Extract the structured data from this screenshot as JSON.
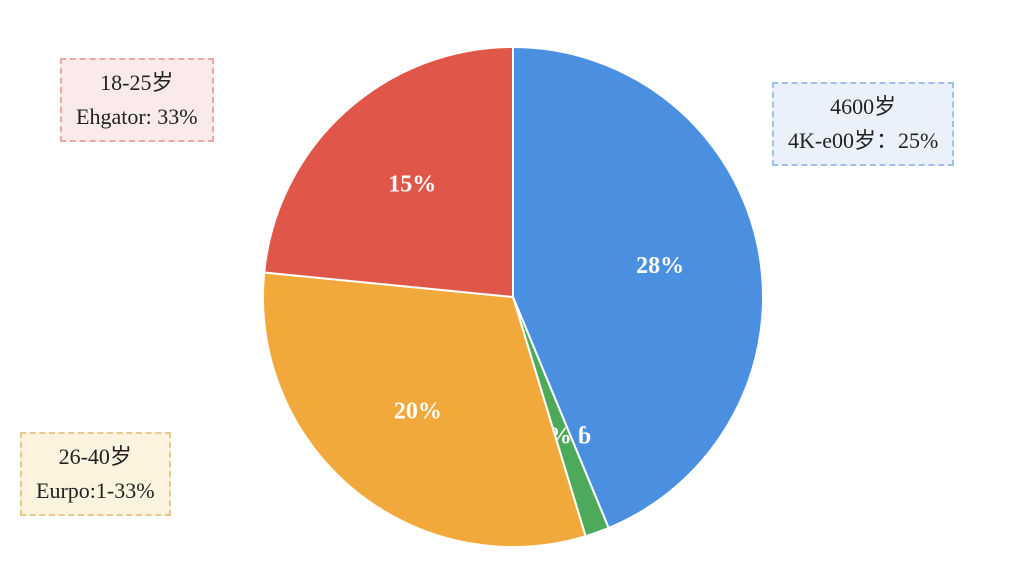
{
  "chart_data": {
    "type": "pie",
    "values": [
      28,
      1,
      20,
      15
    ],
    "value_labels": [
      "28%",
      "1% ɓ",
      "20%",
      "15%"
    ],
    "colors": [
      "#4a8fe0",
      "#4caa5a",
      "#f0a93a",
      "#e0574a"
    ],
    "annotations": [
      {
        "title": "18-25岁",
        "text": "Ehgator: 33%",
        "color": "#e0574a"
      },
      {
        "title": "4600岁",
        "text": "4K-e00岁：25%",
        "color": "#4a8fe0"
      },
      {
        "title": "26-40岁",
        "text": "Eurpo:1-33%",
        "color": "#f0a93a"
      }
    ]
  }
}
